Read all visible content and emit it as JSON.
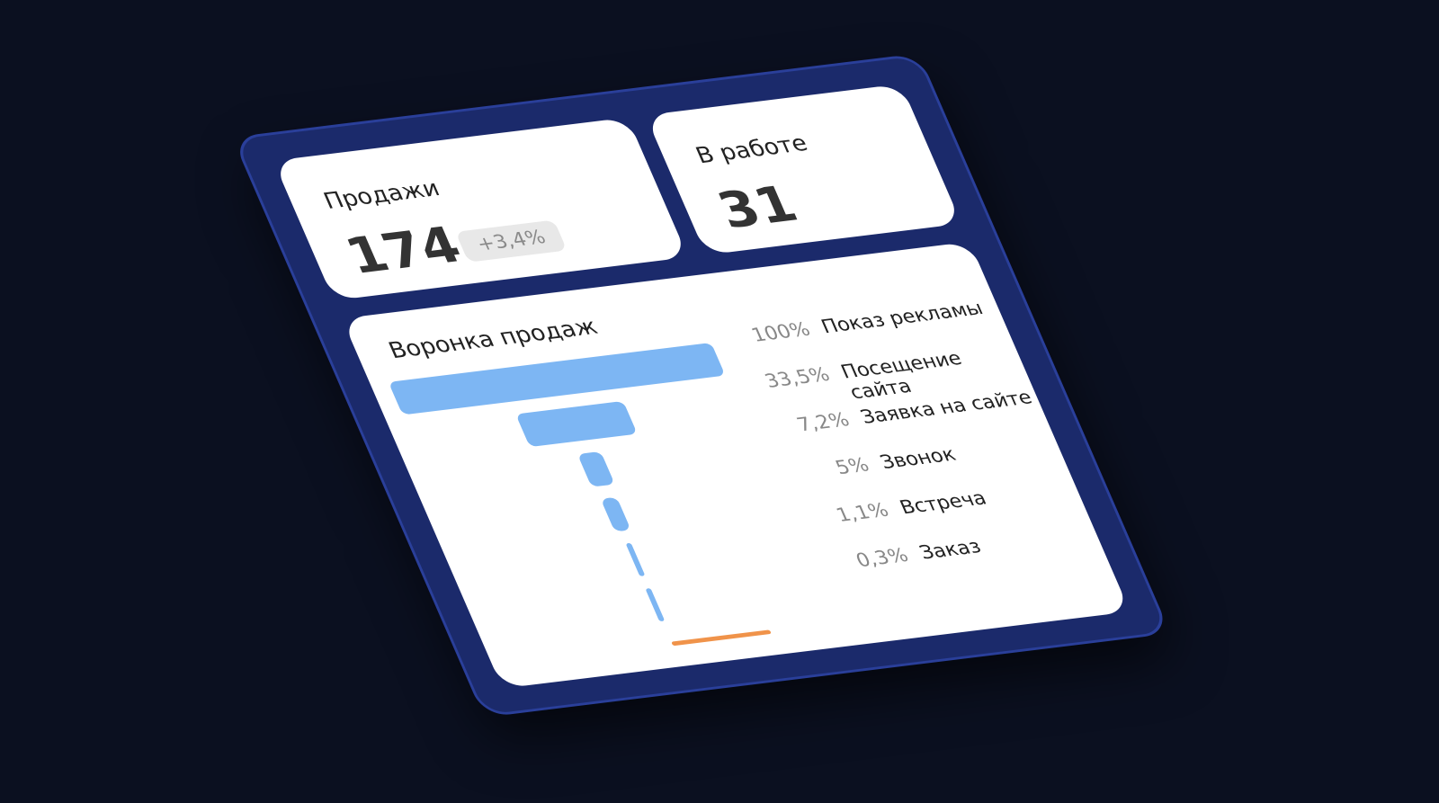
{
  "cards": [
    {
      "title": "Продажи",
      "value": "174",
      "change": "+3,4%"
    },
    {
      "title": "В работе",
      "value": "31"
    }
  ],
  "chart_data": {
    "type": "funnel",
    "title": "Воронка продаж",
    "categories": [
      "Показ рекламы",
      "Посещение сайта",
      "Заявка на сайте",
      "Звонок",
      "Встреча",
      "Заказ"
    ],
    "values": [
      100,
      33.5,
      7.2,
      5,
      1.1,
      0.3
    ],
    "value_labels": [
      "100%",
      "33,5%",
      "7,2%",
      "5%",
      "1,1%",
      "0,3%"
    ],
    "color": "#7db6f3"
  }
}
